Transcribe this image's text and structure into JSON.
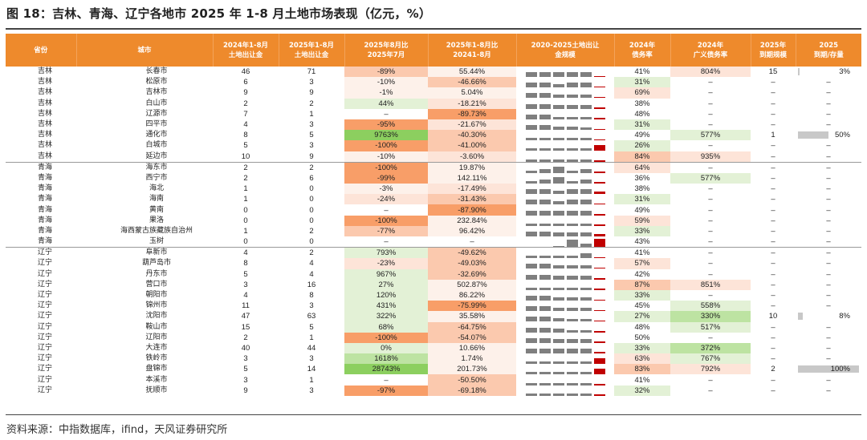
{
  "title": "图 18：吉林、青海、辽宁各地市 2025 年 1-8 月土地市场表现（亿元，%）",
  "source": "资料来源：中指数据库，ifind，天风证券研究所",
  "colors": {
    "header_bg": "#ee8a2c",
    "neg_light": "#fde4d8",
    "neg_mid": "#fbc9ae",
    "neg_strong": "#f89e68",
    "pos_light": "#e3f1d6",
    "pos_mid": "#bde3a2",
    "pos_strong": "#8ccf5f",
    "spark_bar": "#7f7f7f",
    "spark_last": "#c00000",
    "ratio_bar": "#c8c8c8"
  },
  "headers": [
    "省份",
    "城市",
    "2024年1-8月\n土地出让金",
    "2025年1-8月\n土地出让金",
    "2025年8月比\n2025年7月",
    "2025年1-8月比\n20241-8月",
    "2020-2025土地出让\n金规模",
    "2024年\n债务率",
    "2024年\n广义债务率",
    "2025年\n到期规模",
    "2025\n到期/存量"
  ],
  "rows": [
    {
      "prov": "吉林",
      "city": "长春市",
      "v2024": "46",
      "v2025": "71",
      "mom": "-89%",
      "yoy": "55.44%",
      "spark": [
        4,
        4,
        4,
        4,
        4,
        1
      ],
      "debt": "41%",
      "gdebt": "804%",
      "due": "15",
      "ratio": "3%",
      "ratio_frac": 0.03
    },
    {
      "prov": "吉林",
      "city": "松原市",
      "v2024": "6",
      "v2025": "3",
      "mom": "-10%",
      "yoy": "-46.66%",
      "spark": [
        4,
        4,
        3,
        4,
        4,
        1
      ],
      "debt": "31%",
      "gdebt": "–",
      "due": "–",
      "ratio": "–"
    },
    {
      "prov": "吉林",
      "city": "吉林市",
      "v2024": "9",
      "v2025": "9",
      "mom": "-1%",
      "yoy": "5.04%",
      "spark": [
        4,
        4,
        3,
        3,
        3,
        1
      ],
      "debt": "69%",
      "gdebt": "–",
      "due": "–",
      "ratio": "–"
    },
    {
      "prov": "吉林",
      "city": "白山市",
      "v2024": "2",
      "v2025": "2",
      "mom": "44%",
      "yoy": "-18.21%",
      "spark": [
        4,
        4,
        3,
        3,
        3,
        1
      ],
      "debt": "38%",
      "gdebt": "–",
      "due": "–",
      "ratio": "–"
    },
    {
      "prov": "吉林",
      "city": "辽源市",
      "v2024": "7",
      "v2025": "1",
      "mom": "–",
      "yoy": "-89.73%",
      "spark": [
        4,
        4,
        2,
        2,
        2,
        1
      ],
      "debt": "48%",
      "gdebt": "–",
      "due": "–",
      "ratio": "–"
    },
    {
      "prov": "吉林",
      "city": "四平市",
      "v2024": "4",
      "v2025": "3",
      "mom": "-95%",
      "yoy": "-21.67%",
      "spark": [
        4,
        4,
        3,
        3,
        2,
        1
      ],
      "debt": "31%",
      "gdebt": "–",
      "due": "–",
      "ratio": "–"
    },
    {
      "prov": "吉林",
      "city": "通化市",
      "v2024": "8",
      "v2025": "5",
      "mom": "9763%",
      "yoy": "-40.30%",
      "spark": [
        2,
        2,
        2,
        2,
        2,
        1
      ],
      "debt": "49%",
      "gdebt": "577%",
      "due": "1",
      "ratio": "50%",
      "ratio_frac": 0.5
    },
    {
      "prov": "吉林",
      "city": "白城市",
      "v2024": "5",
      "v2025": "3",
      "mom": "-100%",
      "yoy": "-41.00%",
      "spark": [
        2,
        2,
        2,
        2,
        2,
        5
      ],
      "debt": "26%",
      "gdebt": "–",
      "due": "–",
      "ratio": "–"
    },
    {
      "prov": "吉林",
      "city": "延边市",
      "v2024": "10",
      "v2025": "9",
      "mom": "-10%",
      "yoy": "-3.60%",
      "spark": [
        2,
        2,
        2,
        2,
        2,
        1
      ],
      "debt": "84%",
      "gdebt": "935%",
      "due": "–",
      "ratio": "–"
    },
    {
      "prov": "青海",
      "city": "海东市",
      "v2024": "2",
      "v2025": "2",
      "mom": "-100%",
      "yoy": "19.87%",
      "spark": [
        2,
        3,
        5,
        2,
        3,
        1
      ],
      "debt": "64%",
      "gdebt": "–",
      "due": "–",
      "ratio": "–"
    },
    {
      "prov": "青海",
      "city": "西宁市",
      "v2024": "2",
      "v2025": "6",
      "mom": "-99%",
      "yoy": "142.11%",
      "spark": [
        2,
        3,
        5,
        2,
        3,
        1
      ],
      "debt": "36%",
      "gdebt": "577%",
      "due": "–",
      "ratio": "–"
    },
    {
      "prov": "青海",
      "city": "海北",
      "v2024": "1",
      "v2025": "0",
      "mom": "-3%",
      "yoy": "-17.49%",
      "spark": [
        4,
        4,
        3,
        4,
        4,
        2
      ],
      "debt": "38%",
      "gdebt": "–",
      "due": "–",
      "ratio": "–"
    },
    {
      "prov": "青海",
      "city": "海南",
      "v2024": "1",
      "v2025": "0",
      "mom": "-24%",
      "yoy": "-31.43%",
      "spark": [
        4,
        4,
        3,
        4,
        4,
        1
      ],
      "debt": "31%",
      "gdebt": "–",
      "due": "–",
      "ratio": "–"
    },
    {
      "prov": "青海",
      "city": "黄南",
      "v2024": "0",
      "v2025": "0",
      "mom": "–",
      "yoy": "-87.90%",
      "spark": [
        4,
        4,
        4,
        4,
        4,
        1
      ],
      "debt": "49%",
      "gdebt": "–",
      "due": "–",
      "ratio": "–"
    },
    {
      "prov": "青海",
      "city": "果洛",
      "v2024": "0",
      "v2025": "0",
      "mom": "-100%",
      "yoy": "232.84%",
      "spark": [
        2,
        2,
        2,
        2,
        2,
        1
      ],
      "debt": "59%",
      "gdebt": "–",
      "due": "–",
      "ratio": "–"
    },
    {
      "prov": "青海",
      "city": "海西蒙古族藏族自治州",
      "v2024": "1",
      "v2025": "2",
      "mom": "-77%",
      "yoy": "96.42%",
      "spark": [
        4,
        4,
        3,
        3,
        3,
        2
      ],
      "debt": "33%",
      "gdebt": "–",
      "due": "–",
      "ratio": "–"
    },
    {
      "prov": "青海",
      "city": "玉树",
      "v2024": "0",
      "v2025": "0",
      "mom": "–",
      "yoy": "–",
      "spark": [
        0,
        0,
        1,
        6,
        3,
        7
      ],
      "debt": "43%",
      "gdebt": "–",
      "due": "–",
      "ratio": "–"
    },
    {
      "prov": "辽宁",
      "city": "阜新市",
      "v2024": "4",
      "v2025": "2",
      "mom": "793%",
      "yoy": "-49.62%",
      "spark": [
        2,
        2,
        2,
        2,
        4,
        1
      ],
      "debt": "41%",
      "gdebt": "–",
      "due": "–",
      "ratio": "–"
    },
    {
      "prov": "辽宁",
      "city": "葫芦岛市",
      "v2024": "8",
      "v2025": "4",
      "mom": "-23%",
      "yoy": "-49.03%",
      "spark": [
        4,
        4,
        3,
        3,
        3,
        1
      ],
      "debt": "57%",
      "gdebt": "–",
      "due": "–",
      "ratio": "–"
    },
    {
      "prov": "辽宁",
      "city": "丹东市",
      "v2024": "5",
      "v2025": "4",
      "mom": "967%",
      "yoy": "-32.69%",
      "spark": [
        4,
        4,
        3,
        3,
        3,
        1
      ],
      "debt": "42%",
      "gdebt": "–",
      "due": "–",
      "ratio": "–"
    },
    {
      "prov": "辽宁",
      "city": "营口市",
      "v2024": "3",
      "v2025": "16",
      "mom": "27%",
      "yoy": "502.87%",
      "spark": [
        2,
        2,
        2,
        2,
        2,
        1
      ],
      "debt": "87%",
      "gdebt": "851%",
      "due": "–",
      "ratio": "–"
    },
    {
      "prov": "辽宁",
      "city": "朝阳市",
      "v2024": "4",
      "v2025": "8",
      "mom": "120%",
      "yoy": "86.22%",
      "spark": [
        4,
        4,
        3,
        3,
        3,
        1
      ],
      "debt": "33%",
      "gdebt": "–",
      "due": "–",
      "ratio": "–"
    },
    {
      "prov": "辽宁",
      "city": "锦州市",
      "v2024": "11",
      "v2025": "3",
      "mom": "431%",
      "yoy": "-75.99%",
      "spark": [
        4,
        4,
        3,
        3,
        3,
        1
      ],
      "debt": "45%",
      "gdebt": "558%",
      "due": "–",
      "ratio": "–"
    },
    {
      "prov": "辽宁",
      "city": "沈阳市",
      "v2024": "47",
      "v2025": "63",
      "mom": "322%",
      "yoy": "35.58%",
      "spark": [
        4,
        4,
        3,
        2,
        2,
        1
      ],
      "debt": "27%",
      "gdebt": "330%",
      "due": "10",
      "ratio": "8%",
      "ratio_frac": 0.08
    },
    {
      "prov": "辽宁",
      "city": "鞍山市",
      "v2024": "15",
      "v2025": "5",
      "mom": "68%",
      "yoy": "-64.75%",
      "spark": [
        4,
        4,
        3,
        2,
        2,
        1
      ],
      "debt": "48%",
      "gdebt": "517%",
      "due": "–",
      "ratio": "–"
    },
    {
      "prov": "辽宁",
      "city": "辽阳市",
      "v2024": "2",
      "v2025": "1",
      "mom": "-100%",
      "yoy": "-54.07%",
      "spark": [
        4,
        4,
        3,
        3,
        3,
        1
      ],
      "debt": "50%",
      "gdebt": "–",
      "due": "–",
      "ratio": "–"
    },
    {
      "prov": "辽宁",
      "city": "大连市",
      "v2024": "40",
      "v2025": "44",
      "mom": "0%",
      "yoy": "10.66%",
      "spark": [
        4,
        4,
        4,
        4,
        4,
        1
      ],
      "debt": "33%",
      "gdebt": "372%",
      "due": "–",
      "ratio": "–"
    },
    {
      "prov": "辽宁",
      "city": "铁岭市",
      "v2024": "3",
      "v2025": "3",
      "mom": "1618%",
      "yoy": "1.74%",
      "spark": [
        2,
        2,
        2,
        2,
        2,
        5
      ],
      "debt": "63%",
      "gdebt": "767%",
      "due": "–",
      "ratio": "–"
    },
    {
      "prov": "辽宁",
      "city": "盘锦市",
      "v2024": "5",
      "v2025": "14",
      "mom": "28743%",
      "yoy": "201.73%",
      "spark": [
        2,
        2,
        2,
        2,
        2,
        5
      ],
      "debt": "83%",
      "gdebt": "792%",
      "due": "2",
      "ratio": "100%",
      "ratio_frac": 1.0
    },
    {
      "prov": "辽宁",
      "city": "本溪市",
      "v2024": "3",
      "v2025": "1",
      "mom": "–",
      "yoy": "-50.50%",
      "spark": [
        2,
        2,
        2,
        2,
        2,
        1
      ],
      "debt": "41%",
      "gdebt": "–",
      "due": "–",
      "ratio": "–"
    },
    {
      "prov": "辽宁",
      "city": "抚顺市",
      "v2024": "9",
      "v2025": "3",
      "mom": "-97%",
      "yoy": "-69.18%",
      "spark": [
        2,
        2,
        2,
        2,
        2,
        1
      ],
      "debt": "32%",
      "gdebt": "–",
      "due": "–",
      "ratio": "–"
    }
  ]
}
